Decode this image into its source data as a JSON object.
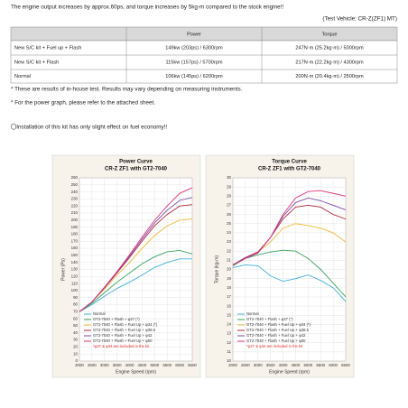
{
  "header": {
    "title": "The engine output increases by approx.60ps, and torque increases by 5kg-m compared to the stock engine!!",
    "vehicle": "(Test Vehicle: CR-Z(ZF1) MT)"
  },
  "table": {
    "columns": [
      "Power",
      "Torque"
    ],
    "rows": [
      [
        "New S/C kit + Fuel up + Flash",
        "149kw (203ps) / 6300rpm",
        "247N·m (25.2kg·m) / 5000rpm"
      ],
      [
        "New S/C kit + Flash",
        "115kw (157ps) / 5700rpm",
        "217N·m (22.2kg·m) / 4300rpm"
      ],
      [
        "Normal",
        "106kw (145ps) / 6200rpm",
        "200N·m (20.4kg·m) / 2500rpm"
      ]
    ]
  },
  "notes": [
    "* These are results of in-house test. Results may vary depending on measuring instruments.",
    "* For the power graph, please refer to the attached sheet.",
    "〇Installation of this kit has only slight effect on fuel economy!!"
  ],
  "chart_data": [
    {
      "type": "line",
      "title": "Power Curve",
      "subtitle": "CR-Z ZF1 with GT2-7040",
      "x_label": "Engine Speed (rpm)",
      "y_label": "Power (Ps)",
      "x": [
        2000,
        2500,
        3000,
        3500,
        4000,
        4500,
        5000,
        5500,
        6000,
        6500
      ],
      "xlim": [
        2000,
        6500
      ],
      "xticks": [
        2000,
        2500,
        3000,
        3500,
        4000,
        4500,
        5000,
        5500,
        6000,
        6500
      ],
      "ylim": [
        0,
        260
      ],
      "yticks": [
        0,
        10,
        20,
        30,
        40,
        50,
        60,
        70,
        80,
        90,
        100,
        110,
        120,
        130,
        140,
        150,
        160,
        170,
        180,
        190,
        200,
        210,
        220,
        230,
        240,
        250,
        260
      ],
      "grid": true,
      "legend_note": "*φ27 & φ34 are included in the kit",
      "series": [
        {
          "name": "Normal",
          "color": "#3fb0de",
          "values": [
            70,
            80,
            92,
            103,
            112,
            122,
            133,
            140,
            145,
            145
          ]
        },
        {
          "name": "GT2-7040 + Flash + φ27 (*)",
          "color": "#3aa35e",
          "values": [
            70,
            82,
            97,
            112,
            125,
            138,
            148,
            155,
            157,
            152
          ]
        },
        {
          "name": "GT2-7040 + Flash + Fuel Up + φ34 (*)",
          "color": "#f0b838",
          "values": [
            70,
            84,
            102,
            122,
            140,
            160,
            178,
            192,
            200,
            202
          ]
        },
        {
          "name": "GT2-7040 + Flash + Fuel Up + φ38.5",
          "color": "#b02a3a",
          "values": [
            70,
            84,
            104,
            125,
            147,
            170,
            192,
            208,
            220,
            222
          ]
        },
        {
          "name": "GT2-7040 + Flash + Fuel Up + φ42",
          "color": "#7a4aa8",
          "values": [
            70,
            84,
            104,
            126,
            149,
            173,
            196,
            214,
            228,
            232
          ]
        },
        {
          "name": "GT2-7040 + Flash + Fuel Up + φ50",
          "color": "#e0357a",
          "values": [
            70,
            84,
            105,
            127,
            151,
            176,
            200,
            220,
            238,
            246
          ]
        }
      ]
    },
    {
      "type": "line",
      "title": "Torque Curve",
      "subtitle": "CR-Z ZF1 with GT2-7040",
      "x_label": "Engine Speed (rpm)",
      "y_label": "Torque (kg-m)",
      "x": [
        2000,
        2500,
        3000,
        3500,
        4000,
        4500,
        5000,
        5500,
        6000,
        6500
      ],
      "xlim": [
        2000,
        6500
      ],
      "xticks": [
        2000,
        2500,
        3000,
        3500,
        4000,
        4500,
        5000,
        5500,
        6000,
        6500
      ],
      "ylim": [
        10,
        30
      ],
      "yticks": [
        10,
        11,
        12,
        13,
        14,
        15,
        16,
        17,
        18,
        19,
        20,
        21,
        22,
        23,
        24,
        25,
        26,
        27,
        28,
        29,
        30
      ],
      "grid": true,
      "legend_note": "*φ27 & φ34 are included in the kit",
      "series": [
        {
          "name": "Normal",
          "color": "#3fb0de",
          "values": [
            20.2,
            20.5,
            20.4,
            19.3,
            18.7,
            19.0,
            19.4,
            18.8,
            18.0,
            16.5
          ]
        },
        {
          "name": "GT2-7040 + Flash + φ27 (*)",
          "color": "#3aa35e",
          "values": [
            20.4,
            21.2,
            21.6,
            21.9,
            22.1,
            22.0,
            21.2,
            20.0,
            18.5,
            17.0
          ]
        },
        {
          "name": "GT2-7040 + Flash + Fuel Up + φ34 (*)",
          "color": "#f0b838",
          "values": [
            20.5,
            21.3,
            21.9,
            23.0,
            24.5,
            25.0,
            24.8,
            24.5,
            24.0,
            23.0
          ]
        },
        {
          "name": "GT2-7040 + Flash + Fuel Up + φ38.5",
          "color": "#b02a3a",
          "values": [
            20.5,
            21.3,
            21.9,
            23.5,
            25.5,
            26.8,
            27.0,
            26.8,
            26.0,
            25.5
          ]
        },
        {
          "name": "GT2-7040 + Flash + Fuel Up + φ42",
          "color": "#7a4aa8",
          "values": [
            20.5,
            21.3,
            21.8,
            23.5,
            25.8,
            27.3,
            27.8,
            27.5,
            27.0,
            26.5
          ]
        },
        {
          "name": "GT2-7040 + Flash + Fuel Up + φ50",
          "color": "#e0357a",
          "values": [
            20.5,
            21.2,
            21.8,
            23.5,
            26.0,
            27.8,
            28.5,
            28.6,
            28.3,
            28.0
          ]
        }
      ]
    }
  ]
}
